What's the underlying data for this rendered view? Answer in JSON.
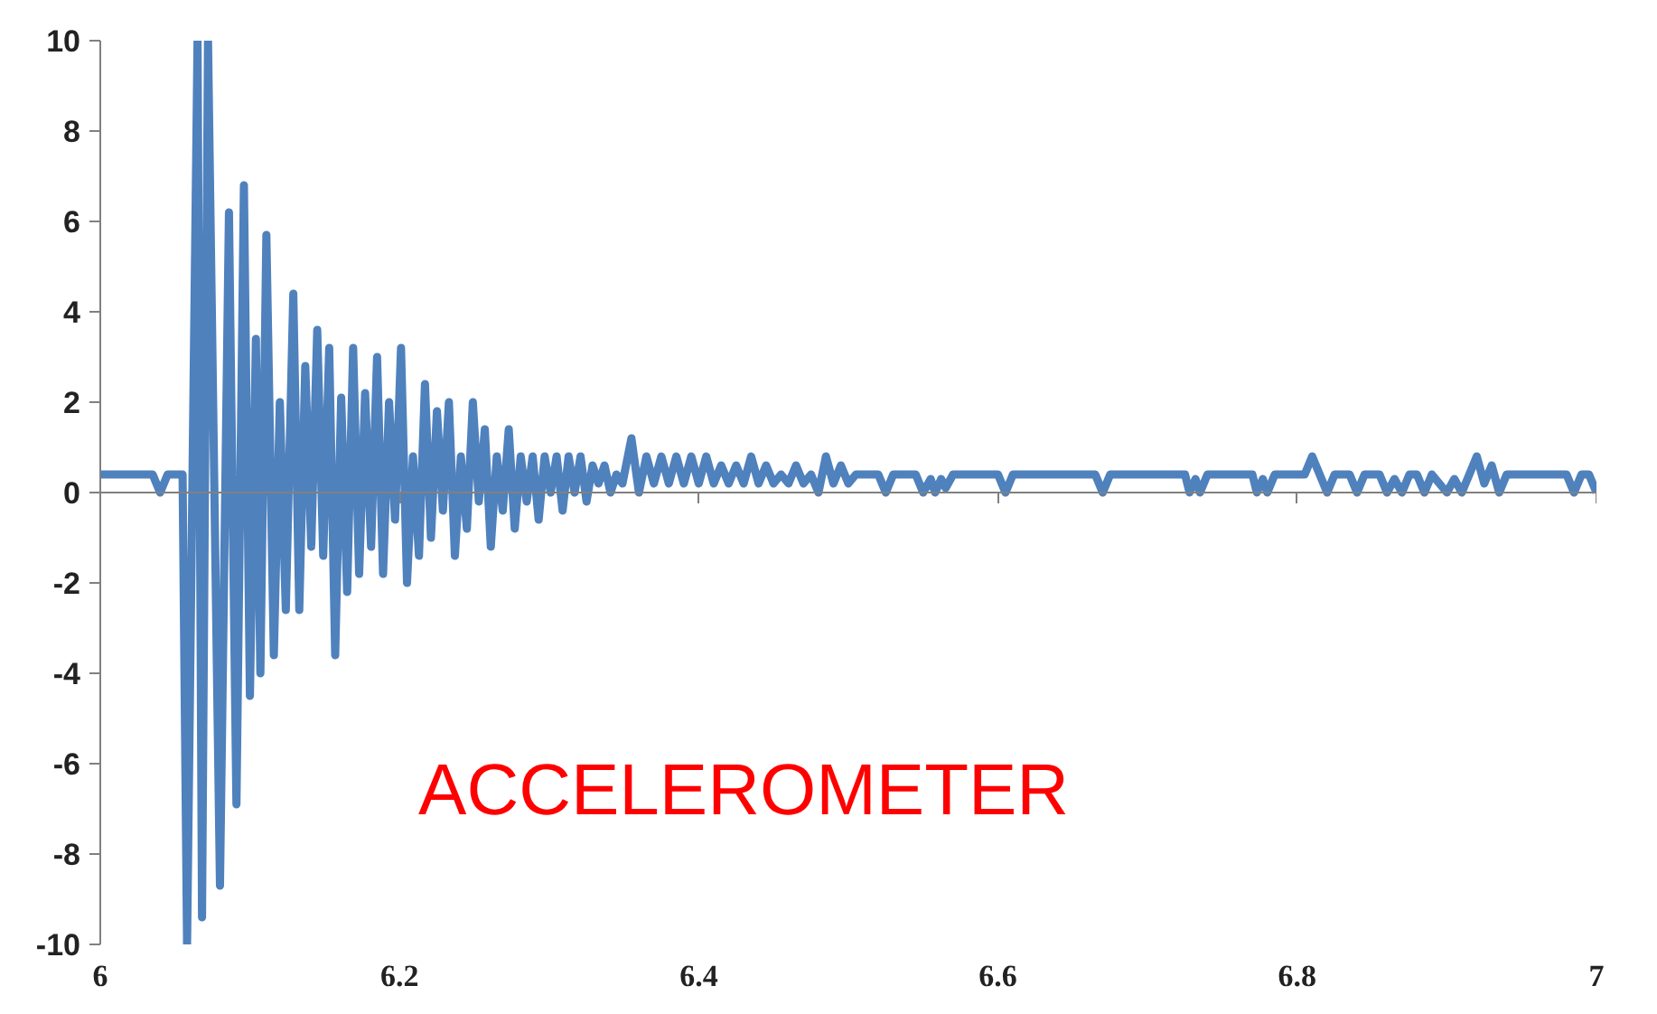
{
  "chart_data": {
    "type": "line",
    "annotations": [
      "ACCELEROMETER"
    ],
    "xlim": [
      6,
      7
    ],
    "ylim": [
      -10,
      10
    ],
    "xticks": [
      6,
      6.2,
      6.4,
      6.6,
      6.8,
      7
    ],
    "yticks": [
      -10,
      -8,
      -6,
      -4,
      -2,
      0,
      2,
      4,
      6,
      8,
      10
    ],
    "marker": "none",
    "line_style": "solid",
    "series": [
      {
        "color": "#4f81bd",
        "x": [
          6.0,
          6.035,
          6.04,
          6.045,
          6.055,
          6.058,
          6.065,
          6.068,
          6.072,
          6.08,
          6.086,
          6.091,
          6.096,
          6.1,
          6.104,
          6.107,
          6.111,
          6.116,
          6.12,
          6.124,
          6.129,
          6.133,
          6.137,
          6.141,
          6.145,
          6.149,
          6.153,
          6.157,
          6.161,
          6.165,
          6.169,
          6.173,
          6.177,
          6.181,
          6.185,
          6.189,
          6.193,
          6.197,
          6.201,
          6.205,
          6.209,
          6.213,
          6.217,
          6.221,
          6.225,
          6.229,
          6.233,
          6.237,
          6.241,
          6.245,
          6.249,
          6.253,
          6.257,
          6.261,
          6.265,
          6.269,
          6.273,
          6.277,
          6.281,
          6.285,
          6.289,
          6.293,
          6.297,
          6.301,
          6.305,
          6.309,
          6.313,
          6.317,
          6.321,
          6.325,
          6.329,
          6.333,
          6.337,
          6.341,
          6.345,
          6.349,
          6.355,
          6.36,
          6.365,
          6.37,
          6.375,
          6.38,
          6.385,
          6.39,
          6.395,
          6.4,
          6.405,
          6.41,
          6.415,
          6.42,
          6.425,
          6.43,
          6.435,
          6.44,
          6.445,
          6.45,
          6.455,
          6.46,
          6.465,
          6.47,
          6.475,
          6.48,
          6.485,
          6.49,
          6.495,
          6.5,
          6.505,
          6.52,
          6.525,
          6.53,
          6.545,
          6.55,
          6.555,
          6.558,
          6.562,
          6.565,
          6.57,
          6.6,
          6.605,
          6.61,
          6.665,
          6.67,
          6.675,
          6.725,
          6.728,
          6.732,
          6.735,
          6.74,
          6.77,
          6.773,
          6.777,
          6.78,
          6.785,
          6.805,
          6.81,
          6.815,
          6.82,
          6.825,
          6.835,
          6.84,
          6.845,
          6.855,
          6.86,
          6.865,
          6.87,
          6.875,
          6.88,
          6.885,
          6.89,
          6.9,
          6.905,
          6.91,
          6.915,
          6.92,
          6.925,
          6.93,
          6.935,
          6.94,
          6.98,
          6.985,
          6.99,
          6.995,
          7.0
        ],
        "values": [
          0.4,
          0.4,
          0.0,
          0.4,
          0.4,
          -10,
          10,
          -9.4,
          10,
          -8.7,
          6.2,
          -6.9,
          6.8,
          -4.5,
          3.4,
          -4.0,
          5.7,
          -3.6,
          2.0,
          -2.6,
          4.4,
          -2.6,
          2.8,
          -1.2,
          3.6,
          -1.4,
          3.2,
          -3.6,
          2.1,
          -2.2,
          3.2,
          -1.8,
          2.2,
          -1.2,
          3.0,
          -1.8,
          2.0,
          -0.6,
          3.2,
          -2.0,
          0.8,
          -1.4,
          2.4,
          -1.0,
          1.8,
          -0.4,
          2.0,
          -1.4,
          0.8,
          -0.8,
          2.0,
          -0.2,
          1.4,
          -1.2,
          0.8,
          -0.4,
          1.4,
          -0.8,
          0.8,
          -0.2,
          0.8,
          -0.6,
          0.8,
          0.0,
          0.8,
          -0.4,
          0.8,
          0.0,
          0.8,
          -0.2,
          0.6,
          0.2,
          0.6,
          0.0,
          0.4,
          0.2,
          1.2,
          0.0,
          0.8,
          0.2,
          0.8,
          0.2,
          0.8,
          0.2,
          0.8,
          0.2,
          0.8,
          0.2,
          0.6,
          0.2,
          0.6,
          0.2,
          0.8,
          0.2,
          0.6,
          0.2,
          0.4,
          0.2,
          0.6,
          0.2,
          0.4,
          0.0,
          0.8,
          0.2,
          0.6,
          0.2,
          0.4,
          0.4,
          0.0,
          0.4,
          0.4,
          0.0,
          0.3,
          0.0,
          0.3,
          0.1,
          0.4,
          0.4,
          0.0,
          0.4,
          0.4,
          0.0,
          0.4,
          0.4,
          0.0,
          0.3,
          0.0,
          0.4,
          0.4,
          0.0,
          0.3,
          0.0,
          0.4,
          0.4,
          0.8,
          0.4,
          0.0,
          0.4,
          0.4,
          0.0,
          0.4,
          0.4,
          0.0,
          0.3,
          0.0,
          0.4,
          0.4,
          0.0,
          0.4,
          0.0,
          0.3,
          0.0,
          0.4,
          0.8,
          0.2,
          0.6,
          0.0,
          0.4,
          0.4,
          0.0,
          0.4,
          0.4,
          0.0
        ]
      }
    ]
  }
}
